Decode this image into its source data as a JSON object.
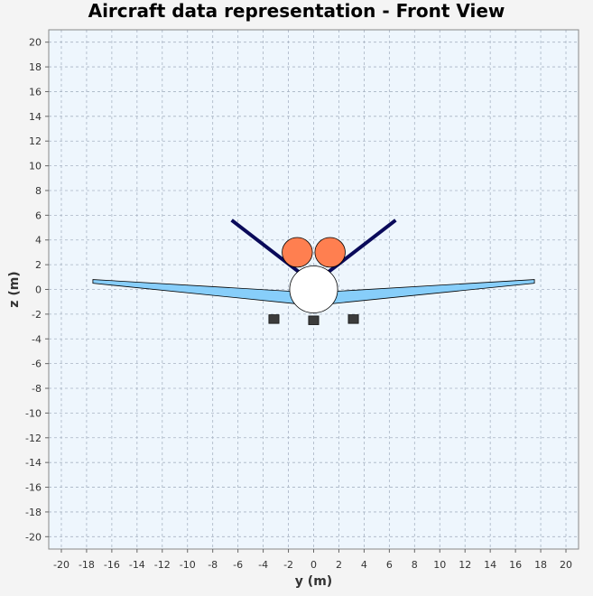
{
  "chart_data": {
    "type": "scatter",
    "title": "Aircraft data representation - Front View",
    "xlabel": "y (m)",
    "ylabel": "z (m)",
    "xlim": [
      -21,
      21
    ],
    "ylim": [
      -21,
      21
    ],
    "x_ticks": [
      -20,
      -18,
      -16,
      -14,
      -12,
      -10,
      -8,
      -6,
      -4,
      -2,
      0,
      2,
      4,
      6,
      8,
      10,
      12,
      14,
      16,
      18,
      20
    ],
    "y_ticks": [
      -20,
      -18,
      -16,
      -14,
      -12,
      -10,
      -8,
      -6,
      -4,
      -2,
      0,
      2,
      4,
      6,
      8,
      10,
      12,
      14,
      16,
      18,
      20
    ],
    "grid": true,
    "colors": {
      "plot_background": "#eef6fd",
      "grid": "#a8b4c4",
      "wing": "#87cefa",
      "tail": "#0a0a5a",
      "engine": "#ff7f50",
      "fuselage": "#ffffff",
      "landing_gear": "#3c3c3c"
    },
    "series": [
      {
        "kind": "wing",
        "points": [
          [
            -17.5,
            0.8
          ],
          [
            -17.5,
            0.5
          ],
          [
            -1.0,
            -1.2
          ],
          [
            1.0,
            -1.2
          ],
          [
            17.5,
            0.5
          ],
          [
            17.5,
            0.8
          ],
          [
            1.0,
            -0.2
          ],
          [
            -1.0,
            -0.2
          ]
        ]
      },
      {
        "kind": "tail",
        "lines": [
          [
            [
              -0.9,
              1.2
            ],
            [
              -6.5,
              5.6
            ]
          ],
          [
            [
              0.9,
              1.2
            ],
            [
              6.5,
              5.6
            ]
          ]
        ]
      },
      {
        "kind": "engine",
        "circles": [
          [
            -1.3,
            3.0,
            1.2
          ],
          [
            1.3,
            3.0,
            1.2
          ]
        ]
      },
      {
        "kind": "fuselage",
        "circles": [
          [
            0.0,
            0.0,
            1.9
          ]
        ]
      },
      {
        "kind": "landing_gear",
        "boxes": [
          [
            -3.15,
            -2.4
          ],
          [
            0.0,
            -2.5
          ],
          [
            3.15,
            -2.4
          ]
        ]
      }
    ]
  }
}
